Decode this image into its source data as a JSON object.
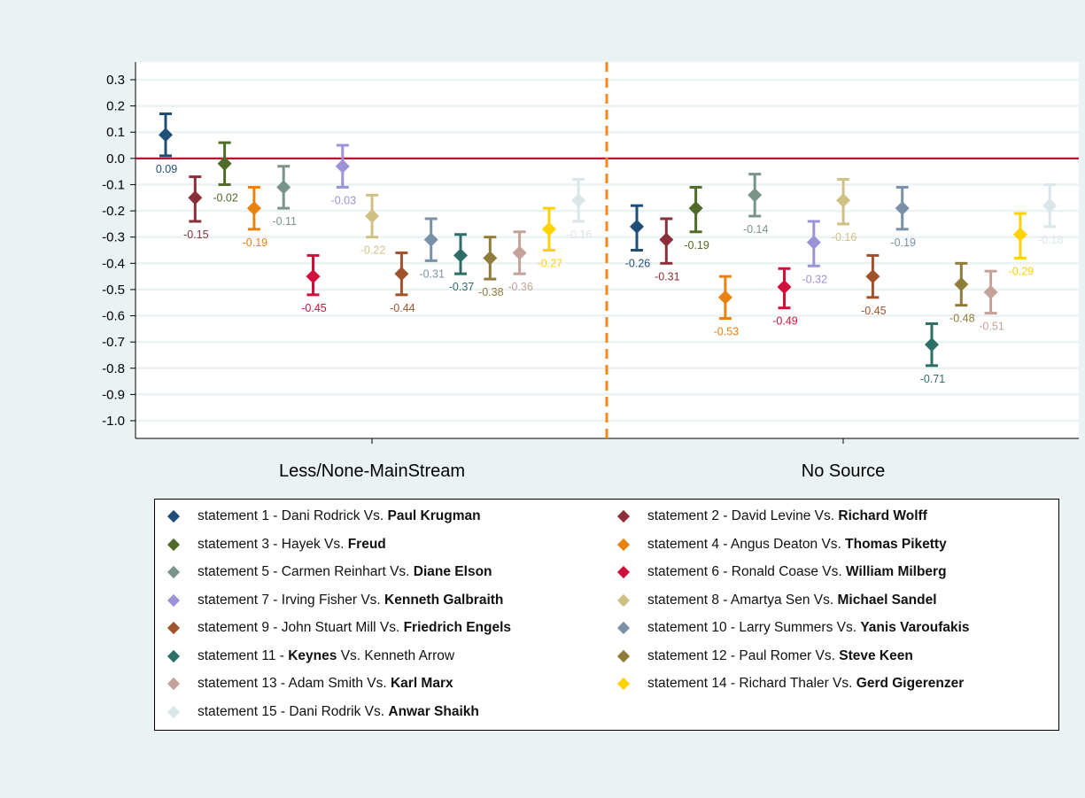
{
  "chart_data": {
    "type": "scatter",
    "description_note": "",
    "ylim": [
      -1.05,
      0.35
    ],
    "yticks": [
      "0.3",
      "0.2",
      "0.1",
      "0.0",
      "-0.1",
      "-0.2",
      "-0.3",
      "-0.4",
      "-0.5",
      "-0.6",
      "-0.7",
      "-0.8",
      "-0.9",
      "-1.0"
    ],
    "groups": [
      "Less/None-MainStream",
      "No Source"
    ],
    "reference_line": 0,
    "colors": {
      "zero_line": "#c8102e",
      "divider": "#f08a1c"
    },
    "series": [
      {
        "id": 1,
        "color": "#1f4e79"
      },
      {
        "id": 2,
        "color": "#8b2f3a"
      },
      {
        "id": 3,
        "color": "#4f6b2a"
      },
      {
        "id": 4,
        "color": "#e8820c"
      },
      {
        "id": 5,
        "color": "#7a9489"
      },
      {
        "id": 6,
        "color": "#d0103a"
      },
      {
        "id": 7,
        "color": "#9b93d8"
      },
      {
        "id": 8,
        "color": "#cfc083"
      },
      {
        "id": 9,
        "color": "#a0522d"
      },
      {
        "id": 10,
        "color": "#7a90a8"
      },
      {
        "id": 11,
        "color": "#2d6e66"
      },
      {
        "id": 12,
        "color": "#8f7b3a"
      },
      {
        "id": 13,
        "color": "#c4a29a"
      },
      {
        "id": 14,
        "color": "#ffd200"
      },
      {
        "id": 15,
        "color": "#d9e6ea"
      }
    ],
    "points": [
      {
        "group": 0,
        "series": 1,
        "value": 0.09,
        "lo": 0.01,
        "hi": 0.17,
        "label": "0.09"
      },
      {
        "group": 0,
        "series": 2,
        "value": -0.15,
        "lo": -0.24,
        "hi": -0.07,
        "label": "-0.15"
      },
      {
        "group": 0,
        "series": 3,
        "value": -0.02,
        "lo": -0.1,
        "hi": 0.06,
        "label": "-0.02"
      },
      {
        "group": 0,
        "series": 4,
        "value": -0.19,
        "lo": -0.27,
        "hi": -0.11,
        "label": "-0.19"
      },
      {
        "group": 0,
        "series": 5,
        "value": -0.11,
        "lo": -0.19,
        "hi": -0.03,
        "label": "-0.11"
      },
      {
        "group": 0,
        "series": 6,
        "value": -0.45,
        "lo": -0.52,
        "hi": -0.37,
        "label": "-0.45"
      },
      {
        "group": 0,
        "series": 7,
        "value": -0.03,
        "lo": -0.11,
        "hi": 0.05,
        "label": "-0.03"
      },
      {
        "group": 0,
        "series": 8,
        "value": -0.22,
        "lo": -0.3,
        "hi": -0.14,
        "label": "-0.22"
      },
      {
        "group": 0,
        "series": 9,
        "value": -0.44,
        "lo": -0.52,
        "hi": -0.36,
        "label": "-0.44"
      },
      {
        "group": 0,
        "series": 10,
        "value": -0.31,
        "lo": -0.39,
        "hi": -0.23,
        "label": "-0.31"
      },
      {
        "group": 0,
        "series": 11,
        "value": -0.37,
        "lo": -0.44,
        "hi": -0.29,
        "label": "-0.37"
      },
      {
        "group": 0,
        "series": 12,
        "value": -0.38,
        "lo": -0.46,
        "hi": -0.3,
        "label": "-0.38"
      },
      {
        "group": 0,
        "series": 13,
        "value": -0.36,
        "lo": -0.44,
        "hi": -0.28,
        "label": "-0.36"
      },
      {
        "group": 0,
        "series": 14,
        "value": -0.27,
        "lo": -0.35,
        "hi": -0.19,
        "label": "-0.27"
      },
      {
        "group": 0,
        "series": 15,
        "value": -0.16,
        "lo": -0.24,
        "hi": -0.08,
        "label": "-0.16"
      },
      {
        "group": 1,
        "series": 1,
        "value": -0.26,
        "lo": -0.35,
        "hi": -0.18,
        "label": "-0.26"
      },
      {
        "group": 1,
        "series": 2,
        "value": -0.31,
        "lo": -0.4,
        "hi": -0.23,
        "label": "-0.31"
      },
      {
        "group": 1,
        "series": 3,
        "value": -0.19,
        "lo": -0.28,
        "hi": -0.11,
        "label": "-0.19"
      },
      {
        "group": 1,
        "series": 4,
        "value": -0.53,
        "lo": -0.61,
        "hi": -0.45,
        "label": "-0.53"
      },
      {
        "group": 1,
        "series": 5,
        "value": -0.14,
        "lo": -0.22,
        "hi": -0.06,
        "label": "-0.14"
      },
      {
        "group": 1,
        "series": 6,
        "value": -0.49,
        "lo": -0.57,
        "hi": -0.42,
        "label": "-0.49"
      },
      {
        "group": 1,
        "series": 7,
        "value": -0.32,
        "lo": -0.41,
        "hi": -0.24,
        "label": "-0.32"
      },
      {
        "group": 1,
        "series": 8,
        "value": -0.16,
        "lo": -0.25,
        "hi": -0.08,
        "label": "-0.16"
      },
      {
        "group": 1,
        "series": 9,
        "value": -0.45,
        "lo": -0.53,
        "hi": -0.37,
        "label": "-0.45"
      },
      {
        "group": 1,
        "series": 10,
        "value": -0.19,
        "lo": -0.27,
        "hi": -0.11,
        "label": "-0.19"
      },
      {
        "group": 1,
        "series": 11,
        "value": -0.71,
        "lo": -0.79,
        "hi": -0.63,
        "label": "-0.71"
      },
      {
        "group": 1,
        "series": 12,
        "value": -0.48,
        "lo": -0.56,
        "hi": -0.4,
        "label": "-0.48"
      },
      {
        "group": 1,
        "series": 13,
        "value": -0.51,
        "lo": -0.59,
        "hi": -0.43,
        "label": "-0.51"
      },
      {
        "group": 1,
        "series": 14,
        "value": -0.29,
        "lo": -0.38,
        "hi": -0.21,
        "label": "-0.29"
      },
      {
        "group": 1,
        "series": 15,
        "value": -0.18,
        "lo": -0.26,
        "hi": -0.1,
        "label": "-0.18"
      }
    ]
  },
  "legend": [
    {
      "series": 1,
      "prefix": "statement 1 - Dani Rodrick Vs. ",
      "bold": "Paul Krugman",
      "suffix": ""
    },
    {
      "series": 2,
      "prefix": "statement 2 - David Levine Vs. ",
      "bold": "Richard Wolff",
      "suffix": ""
    },
    {
      "series": 3,
      "prefix": "statement 3 - Hayek Vs. ",
      "bold": "Freud",
      "suffix": ""
    },
    {
      "series": 4,
      "prefix": "statement 4 - Angus Deaton Vs. ",
      "bold": "Thomas Piketty",
      "suffix": ""
    },
    {
      "series": 5,
      "prefix": "statement 5 - Carmen Reinhart Vs. ",
      "bold": "Diane Elson",
      "suffix": ""
    },
    {
      "series": 6,
      "prefix": "statement 6 - Ronald Coase Vs. ",
      "bold": "William Milberg",
      "suffix": ""
    },
    {
      "series": 7,
      "prefix": "statement 7 - Irving Fisher Vs. ",
      "bold": "Kenneth Galbraith",
      "suffix": ""
    },
    {
      "series": 8,
      "prefix": "statement 8 - Amartya Sen Vs. ",
      "bold": "Michael Sandel",
      "suffix": ""
    },
    {
      "series": 9,
      "prefix": "statement 9 - John Stuart Mill Vs. ",
      "bold": "Friedrich Engels",
      "suffix": ""
    },
    {
      "series": 10,
      "prefix": "statement 10 - Larry Summers Vs. ",
      "bold": "Yanis Varoufakis",
      "suffix": ""
    },
    {
      "series": 11,
      "prefix": "statement 11 - ",
      "bold": "Keynes",
      "suffix": " Vs. Kenneth Arrow"
    },
    {
      "series": 12,
      "prefix": "statement 12 - Paul Romer Vs. ",
      "bold": "Steve Keen",
      "suffix": ""
    },
    {
      "series": 13,
      "prefix": "statement 13 - Adam Smith Vs. ",
      "bold": "Karl Marx",
      "suffix": ""
    },
    {
      "series": 14,
      "prefix": "statement 14 - Richard Thaler Vs. ",
      "bold": "Gerd Gigerenzer",
      "suffix": ""
    },
    {
      "series": 15,
      "prefix": "statement 15 - Dani Rodrik Vs. ",
      "bold": "Anwar Shaikh",
      "suffix": ""
    }
  ]
}
